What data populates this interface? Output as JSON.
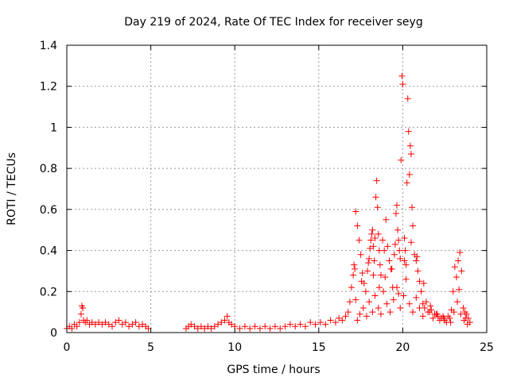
{
  "chart_data": {
    "type": "scatter",
    "title": "Day 219 of 2024, Rate Of TEC Index for receiver seyg",
    "xlabel": "GPS time / hours",
    "ylabel": "ROTI / TECUs",
    "xlim": [
      0,
      25
    ],
    "ylim": [
      0,
      1.4
    ],
    "xticks": [
      0,
      5,
      10,
      15,
      20,
      25
    ],
    "xtick_labels": [
      "0",
      "5",
      "10",
      "15",
      "20",
      "25"
    ],
    "yticks": [
      0,
      0.2,
      0.4,
      0.6,
      0.8,
      1.0,
      1.2,
      1.4
    ],
    "ytick_labels": [
      "0",
      "0.2",
      "0.4",
      "0.6",
      "0.8",
      "1",
      "1.2",
      "1.4"
    ],
    "grid": true,
    "marker": "+",
    "color": "#ff0000",
    "series": [
      {
        "name": "ROTI",
        "x": [
          0.0,
          0.15,
          0.3,
          0.45,
          0.6,
          0.75,
          0.85,
          0.9,
          0.95,
          1.0,
          1.1,
          1.2,
          1.35,
          1.5,
          1.7,
          1.9,
          2.1,
          2.3,
          2.5,
          2.7,
          2.9,
          3.1,
          3.3,
          3.5,
          3.7,
          3.9,
          4.1,
          4.3,
          4.5,
          4.7,
          4.85,
          7.1,
          7.25,
          7.4,
          7.6,
          7.8,
          8.0,
          8.2,
          8.4,
          8.6,
          8.8,
          9.0,
          9.2,
          9.4,
          9.55,
          9.65,
          9.8,
          10.0,
          10.3,
          10.6,
          10.9,
          11.2,
          11.5,
          11.8,
          12.1,
          12.4,
          12.7,
          13.0,
          13.3,
          13.6,
          13.9,
          14.2,
          14.5,
          14.8,
          15.1,
          15.4,
          15.7,
          16.0,
          16.2,
          16.4,
          16.6,
          16.75,
          16.85,
          16.95,
          17.05,
          17.1,
          17.15,
          17.2,
          17.3,
          17.4,
          17.5,
          17.6,
          17.7,
          17.8,
          17.9,
          18.0,
          18.05,
          18.1,
          18.15,
          18.2,
          18.25,
          18.3,
          18.35,
          18.4,
          18.45,
          18.5,
          18.55,
          18.6,
          18.65,
          18.7,
          18.8,
          18.9,
          19.0,
          19.1,
          19.2,
          19.3,
          19.4,
          19.5,
          19.55,
          19.6,
          19.65,
          19.7,
          19.75,
          19.8,
          19.85,
          19.9,
          19.95,
          20.0,
          20.1,
          20.15,
          20.2,
          20.25,
          20.3,
          20.35,
          20.4,
          20.45,
          20.5,
          20.55,
          20.6,
          20.7,
          20.8,
          20.9,
          21.0,
          21.1,
          21.2,
          21.3,
          21.5,
          21.7,
          21.9,
          22.1,
          22.3,
          22.5,
          22.7,
          22.9,
          23.0,
          23.1,
          23.2,
          23.3,
          23.4,
          23.5,
          23.6,
          23.7,
          23.8,
          23.9,
          24.0,
          17.3,
          17.45,
          17.65,
          17.85,
          18.0,
          18.2,
          18.35,
          18.55,
          18.7,
          18.85,
          19.05,
          19.25,
          19.45,
          19.65,
          19.85,
          20.05,
          20.2,
          20.4,
          20.6,
          20.8,
          21.0,
          21.2,
          21.4,
          21.6,
          21.8,
          22.0,
          22.2,
          22.4,
          22.6,
          22.8,
          23.05,
          23.25,
          23.45,
          23.65,
          23.85,
          17.2,
          17.55,
          17.95,
          18.25,
          18.6,
          18.95,
          19.35,
          19.75,
          20.1,
          20.5,
          20.85,
          21.25,
          21.65,
          22.05,
          22.45,
          22.85,
          23.35,
          23.75
        ],
        "y": [
          0.02,
          0.03,
          0.02,
          0.04,
          0.03,
          0.05,
          0.09,
          0.13,
          0.12,
          0.06,
          0.05,
          0.06,
          0.04,
          0.05,
          0.04,
          0.05,
          0.04,
          0.05,
          0.04,
          0.03,
          0.05,
          0.06,
          0.04,
          0.05,
          0.03,
          0.04,
          0.05,
          0.03,
          0.04,
          0.03,
          0.02,
          0.02,
          0.03,
          0.04,
          0.03,
          0.02,
          0.03,
          0.02,
          0.03,
          0.02,
          0.03,
          0.04,
          0.05,
          0.06,
          0.08,
          0.05,
          0.04,
          0.03,
          0.02,
          0.03,
          0.02,
          0.03,
          0.02,
          0.03,
          0.02,
          0.03,
          0.02,
          0.03,
          0.04,
          0.03,
          0.04,
          0.03,
          0.05,
          0.04,
          0.05,
          0.04,
          0.06,
          0.05,
          0.07,
          0.06,
          0.08,
          0.1,
          0.15,
          0.22,
          0.28,
          0.33,
          0.31,
          0.59,
          0.52,
          0.45,
          0.38,
          0.29,
          0.24,
          0.2,
          0.3,
          0.36,
          0.41,
          0.45,
          0.48,
          0.5,
          0.42,
          0.35,
          0.46,
          0.66,
          0.74,
          0.61,
          0.48,
          0.4,
          0.33,
          0.28,
          0.45,
          0.4,
          0.55,
          0.42,
          0.35,
          0.31,
          0.22,
          0.38,
          0.43,
          0.58,
          0.62,
          0.5,
          0.45,
          0.4,
          0.36,
          0.84,
          1.25,
          1.21,
          0.46,
          0.4,
          0.33,
          0.73,
          1.14,
          0.98,
          0.77,
          0.91,
          0.87,
          0.61,
          0.52,
          0.38,
          0.35,
          0.3,
          0.25,
          0.2,
          0.14,
          0.12,
          0.1,
          0.11,
          0.09,
          0.08,
          0.07,
          0.06,
          0.08,
          0.11,
          0.2,
          0.32,
          0.27,
          0.35,
          0.39,
          0.3,
          0.12,
          0.1,
          0.09,
          0.07,
          0.05,
          0.06,
          0.09,
          0.12,
          0.08,
          0.15,
          0.1,
          0.18,
          0.12,
          0.09,
          0.2,
          0.14,
          0.1,
          0.16,
          0.22,
          0.12,
          0.18,
          0.26,
          0.14,
          0.1,
          0.17,
          0.12,
          0.08,
          0.15,
          0.1,
          0.07,
          0.09,
          0.06,
          0.08,
          0.05,
          0.07,
          0.1,
          0.15,
          0.09,
          0.06,
          0.04,
          0.16,
          0.25,
          0.34,
          0.28,
          0.22,
          0.27,
          0.31,
          0.19,
          0.35,
          0.44,
          0.37,
          0.24,
          0.13,
          0.09,
          0.07,
          0.05,
          0.21,
          0.07
        ]
      }
    ]
  }
}
